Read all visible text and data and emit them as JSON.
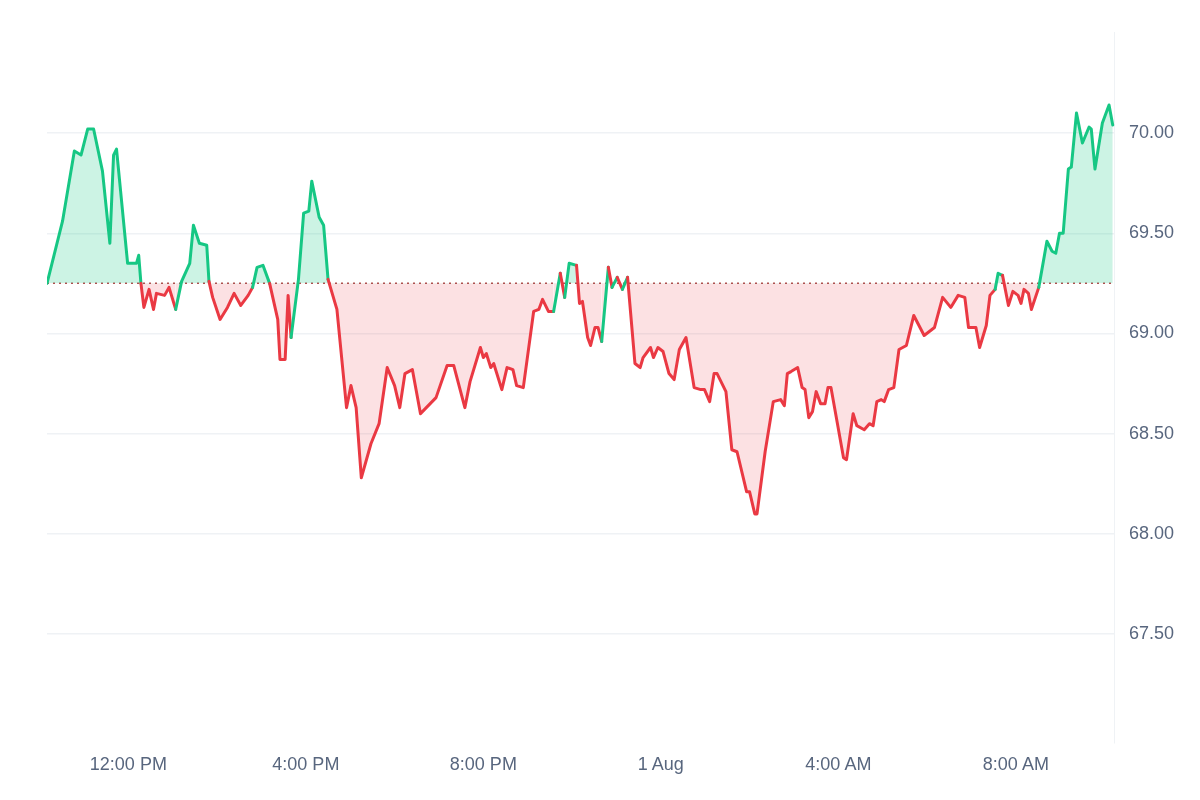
{
  "chart_data": {
    "type": "area",
    "x": [
      "--07-31T10:10",
      "--07-31T10:31",
      "--07-31T10:47",
      "--07-31T10:56",
      "--07-31T11:05",
      "--07-31T11:13",
      "--07-31T11:25",
      "--07-31T11:35",
      "--07-31T11:40",
      "--07-31T11:44",
      "--07-31T11:59",
      "--07-31T12:11",
      "--07-31T12:14",
      "--07-31T12:17",
      "--07-31T12:21",
      "--07-31T12:28",
      "--07-31T12:34",
      "--07-31T12:38",
      "--07-31T12:49",
      "--07-31T12:55",
      "--07-31T13:04",
      "--07-31T13:12",
      "--07-31T13:23",
      "--07-31T13:28",
      "--07-31T13:36",
      "--07-31T13:46",
      "--07-31T13:49",
      "--07-31T13:54",
      "--07-31T14:04",
      "--07-31T14:14",
      "--07-31T14:23",
      "--07-31T14:32",
      "--07-31T14:42",
      "--07-31T14:48",
      "--07-31T14:54",
      "--07-31T15:02",
      "--07-31T15:11",
      "--07-31T15:22",
      "--07-31T15:25",
      "--07-31T15:32",
      "--07-31T15:36",
      "--07-31T15:40",
      "--07-31T15:50",
      "--07-31T15:57",
      "--07-31T16:04",
      "--07-31T16:08",
      "--07-31T16:18",
      "--07-31T16:24",
      "--07-31T16:30",
      "--07-31T16:42",
      "--07-31T16:55",
      "--07-31T17:01",
      "--07-31T17:08",
      "--07-31T17:15",
      "--07-31T17:28",
      "--07-31T17:39",
      "--07-31T17:50",
      "--07-31T18:00",
      "--07-31T18:07",
      "--07-31T18:14",
      "--07-31T18:24",
      "--07-31T18:35",
      "--07-31T18:56",
      "--07-31T19:11",
      "--07-31T19:20",
      "--07-31T19:35",
      "--07-31T19:42",
      "--07-31T19:56",
      "--07-31T20:00",
      "--07-31T20:04",
      "--07-31T20:10",
      "--07-31T20:14",
      "--07-31T20:25",
      "--07-31T20:32",
      "--07-31T20:40",
      "--07-31T20:45",
      "--07-31T20:54",
      "--07-31T21:08",
      "--07-31T21:15",
      "--07-31T21:20",
      "--07-31T21:28",
      "--07-31T21:35",
      "--07-31T21:44",
      "--07-31T21:50",
      "--07-31T21:56",
      "--07-31T22:06",
      "--07-31T22:10",
      "--07-31T22:14",
      "--07-31T22:21",
      "--07-31T22:25",
      "--07-31T22:31",
      "--07-31T22:35",
      "--07-31T22:40",
      "--07-31T22:49",
      "--07-31T22:54",
      "--07-31T23:01",
      "--07-31T23:08",
      "--07-31T23:15",
      "--07-31T23:25",
      "--07-31T23:32",
      "--07-31T23:36",
      "--07-31T23:46",
      "--07-31T23:50",
      "--07-31T23:56",
      "--08-01T00:03",
      "--08-01T00:11",
      "--08-01T00:18",
      "--08-01T00:25",
      "--08-01T00:34",
      "--08-01T00:45",
      "--08-01T00:54",
      "--08-01T00:59",
      "--08-01T01:06",
      "--08-01T01:12",
      "--08-01T01:16",
      "--08-01T01:28",
      "--08-01T01:36",
      "--08-01T01:43",
      "--08-01T01:56",
      "--08-01T02:00",
      "--08-01T02:07",
      "--08-01T02:10",
      "--08-01T02:21",
      "--08-01T02:32",
      "--08-01T02:42",
      "--08-01T02:47",
      "--08-01T02:51",
      "--08-01T02:56",
      "--08-01T03:05",
      "--08-01T03:11",
      "--08-01T03:15",
      "--08-01T03:20",
      "--08-01T03:25",
      "--08-01T03:30",
      "--08-01T03:36",
      "--08-01T03:42",
      "--08-01T03:46",
      "--08-01T03:50",
      "--08-01T04:07",
      "--08-01T04:11",
      "--08-01T04:20",
      "--08-01T04:25",
      "--08-01T04:35",
      "--08-01T04:42",
      "--08-01T04:47",
      "--08-01T04:52",
      "--08-01T04:58",
      "--08-01T05:02",
      "--08-01T05:08",
      "--08-01T05:15",
      "--08-01T05:22",
      "--08-01T05:32",
      "--08-01T05:42",
      "--08-01T05:56",
      "--08-01T06:10",
      "--08-01T06:21",
      "--08-01T06:32",
      "--08-01T06:42",
      "--08-01T06:51",
      "--08-01T06:56",
      "--08-01T07:06",
      "--08-01T07:11",
      "--08-01T07:20",
      "--08-01T07:25",
      "--08-01T07:32",
      "--08-01T07:36",
      "--08-01T07:42",
      "--08-01T07:50",
      "--08-01T07:56",
      "--08-01T08:03",
      "--08-01T08:07",
      "--08-01T08:11",
      "--08-01T08:17",
      "--08-01T08:21",
      "--08-01T08:31",
      "--08-01T08:42",
      "--08-01T08:49",
      "--08-01T08:54",
      "--08-01T08:59",
      "--08-01T09:04",
      "--08-01T09:11",
      "--08-01T09:15",
      "--08-01T09:22",
      "--08-01T09:30",
      "--08-01T09:39",
      "--08-01T09:42",
      "--08-01T09:47",
      "--08-01T09:57",
      "--08-01T10:06",
      "--08-01T10:11"
    ],
    "series": [
      {
        "color": "#16c784",
        "values": [
          69.25,
          69.56,
          69.91,
          69.89,
          70.02,
          70.02,
          69.81,
          69.45,
          69.89,
          69.92,
          69.35,
          69.35,
          69.39,
          69.25,
          69.13,
          69.22,
          69.12,
          69.2,
          69.19,
          69.23,
          69.12,
          69.26,
          69.35,
          69.54,
          69.45,
          69.44,
          69.26,
          69.18,
          69.07,
          69.13,
          69.2,
          69.14,
          69.19,
          69.23,
          69.33,
          69.34,
          69.25,
          69.07,
          68.87,
          68.87,
          69.19,
          68.98,
          69.27,
          69.6,
          69.61,
          69.76,
          69.58,
          69.54,
          69.27,
          69.12,
          68.63,
          68.74,
          68.63,
          68.28,
          68.45,
          68.55,
          68.83,
          68.74,
          68.63,
          68.8,
          68.82,
          68.6,
          68.68,
          68.84,
          68.84,
          68.63,
          68.76,
          68.93,
          68.88,
          68.9,
          68.83,
          68.85,
          68.72,
          68.83,
          68.82,
          68.74,
          68.73,
          69.11,
          69.12,
          69.17,
          69.11,
          69.11,
          69.3,
          69.18,
          69.35,
          69.34,
          69.15,
          69.16,
          68.98,
          68.94,
          69.03,
          69.03,
          68.96,
          69.33,
          69.23,
          69.28,
          69.22,
          69.28,
          68.85,
          68.83,
          68.88,
          68.93,
          68.88,
          68.93,
          68.91,
          68.8,
          68.77,
          68.92,
          68.98,
          68.73,
          68.72,
          68.72,
          68.66,
          68.8,
          68.8,
          68.71,
          68.42,
          68.41,
          68.21,
          68.21,
          68.1,
          68.1,
          68.41,
          68.66,
          68.67,
          68.64,
          68.8,
          68.81,
          68.83,
          68.73,
          68.72,
          68.58,
          68.61,
          68.71,
          68.65,
          68.65,
          68.73,
          68.73,
          68.38,
          68.37,
          68.6,
          68.54,
          68.52,
          68.55,
          68.54,
          68.66,
          68.67,
          68.66,
          68.72,
          68.73,
          68.92,
          68.94,
          69.09,
          68.99,
          69.03,
          69.18,
          69.13,
          69.19,
          69.18,
          69.03,
          69.03,
          68.93,
          69.04,
          69.19,
          69.22,
          69.3,
          69.29,
          69.14,
          69.21,
          69.19,
          69.15,
          69.22,
          69.2,
          69.12,
          69.23,
          69.46,
          69.41,
          69.4,
          69.5,
          69.5,
          69.82,
          69.83,
          70.1,
          69.95,
          70.03,
          70.02,
          69.82,
          70.05,
          70.14,
          70.04
        ],
        "colors": [
          "#16c784",
          "#16c784",
          "#16c784",
          "#16c784",
          "#16c784",
          "#16c784",
          "#16c784",
          "#16c784",
          "#16c784",
          "#16c784",
          "#16c784",
          "#16c784",
          "#16c784",
          "#16c784",
          "#ea3943",
          "#ea3943",
          "#ea3943",
          "#ea3943",
          "#ea3943",
          "#ea3943",
          "#ea3943",
          "#16c784",
          "#16c784",
          "#16c784",
          "#16c784",
          "#16c784",
          "#16c784",
          "#ea3943",
          "#ea3943",
          "#ea3943",
          "#ea3943",
          "#ea3943",
          "#ea3943",
          "#ea3943",
          "#16c784",
          "#16c784",
          "#16c784",
          "#ea3943",
          "#ea3943",
          "#ea3943",
          "#ea3943",
          "#ea3943",
          "#16c784",
          "#16c784",
          "#16c784",
          "#16c784",
          "#16c784",
          "#16c784",
          "#16c784",
          "#ea3943",
          "#ea3943",
          "#ea3943",
          "#ea3943",
          "#ea3943",
          "#ea3943",
          "#ea3943",
          "#ea3943",
          "#ea3943",
          "#ea3943",
          "#ea3943",
          "#ea3943",
          "#ea3943",
          "#ea3943",
          "#ea3943",
          "#ea3943",
          "#ea3943",
          "#ea3943",
          "#ea3943",
          "#ea3943",
          "#ea3943",
          "#ea3943",
          "#ea3943",
          "#ea3943",
          "#ea3943",
          "#ea3943",
          "#ea3943",
          "#ea3943",
          "#ea3943",
          "#ea3943",
          "#ea3943",
          "#ea3943",
          "#ea3943",
          "#16c784",
          "#ea3943",
          "#16c784",
          "#16c784",
          "#ea3943",
          "#ea3943",
          "#ea3943",
          "#ea3943",
          "#ea3943",
          "#ea3943",
          "#ea3943",
          "#16c784",
          "#ea3943",
          "#16c784",
          "#ea3943",
          "#16c784",
          "#ea3943",
          "#ea3943",
          "#ea3943",
          "#ea3943",
          "#ea3943",
          "#ea3943",
          "#ea3943",
          "#ea3943",
          "#ea3943",
          "#ea3943",
          "#ea3943",
          "#ea3943",
          "#ea3943",
          "#ea3943",
          "#ea3943",
          "#ea3943",
          "#ea3943",
          "#ea3943",
          "#ea3943",
          "#ea3943",
          "#ea3943",
          "#ea3943",
          "#ea3943",
          "#ea3943",
          "#ea3943",
          "#ea3943",
          "#ea3943",
          "#ea3943",
          "#ea3943",
          "#ea3943",
          "#ea3943",
          "#ea3943",
          "#ea3943",
          "#ea3943",
          "#ea3943",
          "#ea3943",
          "#ea3943",
          "#ea3943",
          "#ea3943",
          "#ea3943",
          "#ea3943",
          "#ea3943",
          "#ea3943",
          "#ea3943",
          "#ea3943",
          "#ea3943",
          "#ea3943",
          "#ea3943",
          "#ea3943",
          "#ea3943",
          "#ea3943",
          "#ea3943",
          "#ea3943",
          "#ea3943",
          "#ea3943",
          "#ea3943",
          "#ea3943",
          "#ea3943",
          "#ea3943",
          "#ea3943",
          "#ea3943",
          "#ea3943",
          "#ea3943",
          "#ea3943",
          "#ea3943",
          "#ea3943",
          "#ea3943",
          "#16c784",
          "#16c784",
          "#ea3943",
          "#ea3943",
          "#ea3943",
          "#ea3943",
          "#ea3943",
          "#ea3943",
          "#ea3943",
          "#ea3943",
          "#16c784",
          "#16c784",
          "#16c784",
          "#16c784",
          "#16c784",
          "#16c784",
          "#16c784",
          "#16c784",
          "#16c784",
          "#16c784",
          "#16c784",
          "#16c784",
          "#16c784",
          "#16c784",
          "#16c784"
        ]
      }
    ],
    "xlim": [
      "--07-31T10:10",
      "--08-01T10:14"
    ],
    "xticks": [
      {
        "value": "--07-31T12:00",
        "label": "12:00 PM"
      },
      {
        "value": "--07-31T16:00",
        "label": "4:00 PM"
      },
      {
        "value": "--07-31T20:00",
        "label": "8:00 PM"
      },
      {
        "value": "--08-01T00:00",
        "label": "1 Aug"
      },
      {
        "value": "--08-01T04:00",
        "label": "4:00 AM"
      },
      {
        "value": "--08-01T08:00",
        "label": "8:00 AM"
      }
    ],
    "ylim": [
      66.96,
      70.5
    ],
    "yticks": [
      {
        "value": 67.5,
        "label": "67.50"
      },
      {
        "value": 68,
        "label": "68.00"
      },
      {
        "value": 68.5,
        "label": "68.50"
      },
      {
        "value": 69,
        "label": "69.00"
      },
      {
        "value": 69.5,
        "label": "69.50"
      },
      {
        "value": 70,
        "label": "70.00"
      }
    ],
    "ref_lines": [
      {
        "axis": "y",
        "value": 69.25,
        "color": "#b05050",
        "line_style": "dotted"
      }
    ],
    "grid": "y",
    "legend": false,
    "marker": "none",
    "line_style": "solid"
  }
}
